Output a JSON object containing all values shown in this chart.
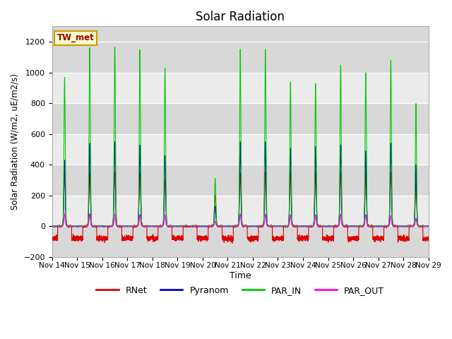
{
  "title": "Solar Radiation",
  "ylabel": "Solar Radiation (W/m2, uE/m2/s)",
  "xlabel": "Time",
  "ylim": [
    -200,
    1300
  ],
  "yticks": [
    -200,
    0,
    200,
    400,
    600,
    800,
    1000,
    1200
  ],
  "xtick_labels": [
    "Nov 14",
    "Nov 15",
    "Nov 16",
    "Nov 17",
    "Nov 18",
    "Nov 19",
    "Nov 20",
    "Nov 21",
    "Nov 22",
    "Nov 23",
    "Nov 24",
    "Nov 25",
    "Nov 26",
    "Nov 27",
    "Nov 28",
    "Nov 29"
  ],
  "legend_labels": [
    "RNet",
    "Pyranom",
    "PAR_IN",
    "PAR_OUT"
  ],
  "site_label": "TW_met",
  "site_label_color": "#990000",
  "site_label_bg": "#ffffcc",
  "site_label_border": "#cc9900",
  "background_color": "#ffffff",
  "band_colors": [
    "#d8d8d8",
    "#ebebeb"
  ],
  "grid_color": "#ffffff",
  "colors": {
    "RNet": "#dd0000",
    "Pyranom": "#0000dd",
    "PAR_IN": "#00cc00",
    "PAR_OUT": "#ff00ff"
  },
  "par_in_peaks": [
    970,
    1160,
    1170,
    1150,
    1030,
    0,
    310,
    1150,
    1150,
    940,
    930,
    1050,
    1000,
    1080,
    800
  ],
  "pyranom_peaks": [
    430,
    540,
    550,
    530,
    460,
    0,
    130,
    550,
    550,
    510,
    520,
    530,
    490,
    540,
    400
  ],
  "rnet_peaks": [
    350,
    350,
    350,
    350,
    300,
    0,
    200,
    350,
    350,
    350,
    350,
    350,
    340,
    350,
    280
  ],
  "par_out_peaks": [
    80,
    80,
    80,
    75,
    75,
    0,
    30,
    80,
    80,
    75,
    75,
    80,
    75,
    70,
    50
  ],
  "rnet_night": -80,
  "n_days": 15,
  "pts_per_day": 288
}
